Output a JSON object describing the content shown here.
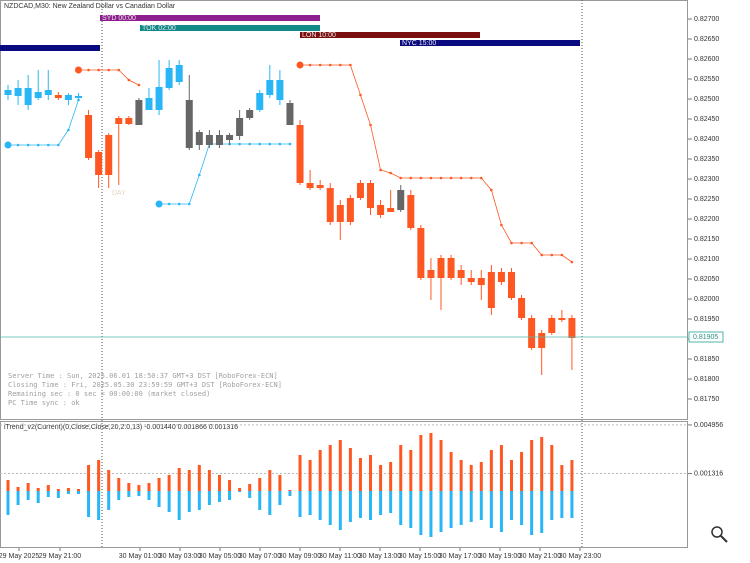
{
  "chart_data": {
    "type": "candlestick",
    "title": "NZDCAD,M30: New Zealand Dollar vs Canadian Dollar",
    "ylim": [
      0.816975,
      0.827475
    ],
    "yticks": [
      {
        "value": 0.827,
        "label": "0.82700"
      },
      {
        "value": 0.8265,
        "label": "0.82650"
      },
      {
        "value": 0.826,
        "label": "0.82600"
      },
      {
        "value": 0.8255,
        "label": "0.82550"
      },
      {
        "value": 0.825,
        "label": "0.82500"
      },
      {
        "value": 0.8245,
        "label": "0.82450"
      },
      {
        "value": 0.824,
        "label": "0.82400"
      },
      {
        "value": 0.8235,
        "label": "0.82350"
      },
      {
        "value": 0.823,
        "label": "0.82300"
      },
      {
        "value": 0.8225,
        "label": "0.82250"
      },
      {
        "value": 0.822,
        "label": "0.82200"
      },
      {
        "value": 0.8215,
        "label": "0.82150"
      },
      {
        "value": 0.821,
        "label": "0.82100"
      },
      {
        "value": 0.8205,
        "label": "0.82050"
      },
      {
        "value": 0.82,
        "label": "0.82000"
      },
      {
        "value": 0.8195,
        "label": "0.81950"
      },
      {
        "value": 0.819,
        "label": "0.81900"
      },
      {
        "value": 0.8185,
        "label": "0.81850"
      },
      {
        "value": 0.818,
        "label": "0.81800"
      },
      {
        "value": 0.8175,
        "label": "0.81750"
      }
    ],
    "bid": 0.81905,
    "open": [
      0.8251,
      0.825075,
      0.82485,
      0.825025,
      0.8251,
      0.8251,
      0.824975,
      0.825025,
      0.8246,
      0.823675,
      0.8241,
      0.824525,
      0.824525,
      0.82435,
      0.824725,
      0.824725,
      0.825275,
      0.825425,
      0.824975,
      0.824175,
      0.82385,
      0.8241,
      0.823975,
      0.824075,
      0.824525,
      0.824725,
      0.8251,
      0.824975,
      0.8249,
      0.82435,
      0.8229,
      0.82285,
      0.822775,
      0.82235,
      0.821925,
      0.822525,
      0.8229,
      0.82235,
      0.822275,
      0.822225,
      0.8226,
      0.821775,
      0.820725,
      0.820525,
      0.821025,
      0.820725,
      0.820525,
      0.820525,
      0.820675,
      0.820425,
      0.820675,
      0.820025,
      0.819525,
      0.818775,
      0.81915,
      0.819525,
      0.819525
    ],
    "high": [
      0.82535,
      0.825475,
      0.8256,
      0.825725,
      0.825725,
      0.825175,
      0.82515,
      0.82515,
      0.824725,
      0.823725,
      0.82415,
      0.824575,
      0.824575,
      0.825025,
      0.825275,
      0.825975,
      0.825975,
      0.825975,
      0.8256,
      0.824225,
      0.824225,
      0.824225,
      0.82415,
      0.824725,
      0.824775,
      0.825225,
      0.82585,
      0.825725,
      0.824975,
      0.824475,
      0.823225,
      0.822975,
      0.8229,
      0.822475,
      0.8226,
      0.822975,
      0.822975,
      0.822475,
      0.822725,
      0.82285,
      0.822725,
      0.82185,
      0.821025,
      0.8211,
      0.8211,
      0.82085,
      0.820725,
      0.820725,
      0.82085,
      0.820775,
      0.820775,
      0.8201,
      0.8196,
      0.819225,
      0.8196,
      0.819725,
      0.8196
    ],
    "low": [
      0.824975,
      0.82485,
      0.824725,
      0.824975,
      0.824975,
      0.824975,
      0.82485,
      0.824975,
      0.823475,
      0.822775,
      0.822775,
      0.82285,
      0.82435,
      0.82435,
      0.824725,
      0.8246,
      0.825225,
      0.82535,
      0.823725,
      0.823725,
      0.823775,
      0.823775,
      0.82385,
      0.823975,
      0.824475,
      0.824675,
      0.825025,
      0.82485,
      0.82435,
      0.82285,
      0.822725,
      0.822725,
      0.82185,
      0.821475,
      0.82185,
      0.822475,
      0.8221,
      0.822025,
      0.822175,
      0.822175,
      0.821725,
      0.820475,
      0.819975,
      0.819725,
      0.820475,
      0.82035,
      0.82035,
      0.819975,
      0.8196,
      0.82035,
      0.819975,
      0.819475,
      0.818725,
      0.8181,
      0.8191,
      0.819425,
      0.818225
    ],
    "close": [
      0.825225,
      0.825275,
      0.825275,
      0.825175,
      0.825225,
      0.825025,
      0.8251,
      0.825075,
      0.823525,
      0.8231,
      0.8231,
      0.824375,
      0.824375,
      0.824975,
      0.825025,
      0.8253,
      0.825775,
      0.82585,
      0.823775,
      0.82385,
      0.8241,
      0.82385,
      0.8241,
      0.824525,
      0.824725,
      0.82515,
      0.825475,
      0.825475,
      0.82435,
      0.8229,
      0.822775,
      0.822775,
      0.821925,
      0.821925,
      0.822525,
      0.8229,
      0.822275,
      0.8221,
      0.822175,
      0.822725,
      0.821775,
      0.820525,
      0.820525,
      0.821025,
      0.820525,
      0.820525,
      0.820425,
      0.82035,
      0.819775,
      0.820675,
      0.820025,
      0.819525,
      0.818775,
      0.81915,
      0.819525,
      0.819475,
      0.819025
    ],
    "colors": [
      "#29b6f6",
      "#29b6f6",
      "#29b6f6",
      "#29b6f6",
      "#29b6f6",
      "#ff5722",
      "#29b6f6",
      "#29b6f6",
      "#ff5722",
      "#ff5722",
      "#ff5722",
      "#ff5722",
      "#ff5722",
      "#666666",
      "#29b6f6",
      "#29b6f6",
      "#29b6f6",
      "#29b6f6",
      "#666666",
      "#666666",
      "#666666",
      "#666666",
      "#666666",
      "#666666",
      "#666666",
      "#29b6f6",
      "#29b6f6",
      "#29b6f6",
      "#666666",
      "#ff5722",
      "#ff5722",
      "#ff5722",
      "#ff5722",
      "#ff5722",
      "#ff5722",
      "#ff5722",
      "#ff5722",
      "#ff5722",
      "#ff5722",
      "#666666",
      "#ff5722",
      "#ff5722",
      "#ff5722",
      "#ff5722",
      "#ff5722",
      "#ff5722",
      "#ff5722",
      "#ff5722",
      "#ff5722",
      "#ff5722",
      "#ff5722",
      "#ff5722",
      "#ff5722",
      "#ff5722",
      "#ff5722",
      "#ff5722",
      "#ff5722"
    ],
    "overlays": [
      {
        "color": "#ff5722",
        "values": [
          null,
          null,
          null,
          null,
          null,
          null,
          null,
          0.825725,
          0.825725,
          0.825725,
          0.825725,
          0.825725,
          0.825475,
          0.82535,
          null,
          null,
          null,
          null,
          null,
          null,
          null,
          null,
          null,
          null,
          null,
          null,
          null,
          null,
          null,
          0.82585,
          0.82585,
          0.82585,
          0.82585,
          0.82585,
          0.82585,
          0.8251,
          0.82435,
          0.823225,
          0.82315,
          0.823025,
          0.823025,
          0.823025,
          0.823025,
          0.823025,
          0.823025,
          0.823025,
          0.823025,
          0.823025,
          0.822725,
          0.82185,
          0.8214,
          0.8214,
          0.8214,
          0.8211,
          0.8211,
          0.8211,
          0.820925
        ]
      },
      {
        "color": "#29b6f6",
        "values": [
          0.82385,
          0.82385,
          0.82385,
          0.82385,
          0.82385,
          0.82385,
          0.824225,
          0.824975,
          null,
          null,
          null,
          null,
          null,
          null,
          null,
          0.822375,
          0.822375,
          0.822375,
          0.822375,
          0.8231,
          0.823875,
          0.823875,
          0.823875,
          0.823875,
          0.823875,
          0.823875,
          0.823875,
          0.823875,
          0.823875,
          null,
          null,
          null,
          null,
          null,
          null,
          null,
          null,
          null,
          null,
          null,
          null,
          null,
          null,
          null,
          null,
          null,
          null,
          null,
          null,
          null,
          null,
          null,
          null,
          null,
          null,
          null,
          null
        ]
      }
    ],
    "sessions": [
      {
        "label": "SYD 00:00",
        "color": "#8e1d8e"
      },
      {
        "label": "TOK 02:00",
        "color": "#138a8a"
      },
      {
        "label": "LON 10:00",
        "color": "#7a0e0e"
      },
      {
        "label": "NYC 15:00",
        "color": "#0a0a80"
      }
    ],
    "day_label": "DAY",
    "info": [
      "Server Time   : Sun, 2025.06.01 18:50:37 GMT+3 DST [RoboForex-ECN]",
      "Closing Time  : Fri, 2025.05.30 23:59:59 GMT+3 DST [RoboForex-ECN]",
      "Remaining sec : 0 sec =  00:00:00   (market closed)",
      "PC Time sync  : ok"
    ],
    "x_labels": [
      "29 May 2025",
      "29 May 21:00",
      "30 May 01:00",
      "30 May 03:00",
      "30 May 05:00",
      "30 May 07:00",
      "30 May 09:00",
      "30 May 11:00",
      "30 May 13:00",
      "30 May 15:00",
      "30 May 17:00",
      "30 May 19:00",
      "30 May 21:00",
      "30 May 23:00"
    ],
    "indicator": {
      "type": "bar",
      "title": "iTrend_v2(Current)(0,Close,Close,20,2.0,13) -0.001440 0.001866 0.001316",
      "ylim": [
        -0.004275,
        0.005325
      ],
      "yticks": [
        0.004956,
        0.001316
      ],
      "pos_color": "#ff5722",
      "neg_color": "#29b6f6",
      "positive": [
        0.000825,
        0.0003,
        0.0006,
        0.000225,
        0.00045,
        0.00015,
        0.000225,
        0.00015,
        0.00195,
        0.002325,
        0.001575,
        0.000975,
        0.0006,
        0.00045,
        0.0006,
        0.000975,
        0.0012,
        0.001725,
        0.001575,
        0.00195,
        0.001575,
        0.0012,
        0.000825,
        0.000225,
        0.000525,
        0.000975,
        0.001575,
        0.0012,
        7.5e-05,
        0.0027,
        0.002325,
        0.003075,
        0.00345,
        0.003825,
        0.003225,
        0.002475,
        0.0027,
        0.00195,
        0.002175,
        0.00345,
        0.003075,
        0.0042,
        0.00435,
        0.003825,
        0.002925,
        0.002325,
        0.00195,
        0.002175,
        0.003075,
        0.00345,
        0.002325,
        0.002925,
        0.003825,
        0.00405,
        0.00345,
        0.00195,
        0.002325
      ],
      "negative": [
        -0.0018,
        -0.00105,
        -0.000675,
        -0.0009,
        -0.00045,
        -0.000525,
        -0.000225,
        -0.000225,
        -0.00195,
        -0.002175,
        -0.001425,
        -0.000675,
        -0.00045,
        -0.000375,
        -0.000675,
        -0.0012,
        -0.001575,
        -0.002175,
        -0.001575,
        -0.001425,
        -0.00105,
        -0.000825,
        -0.000675,
        -7.5e-05,
        -0.000525,
        -0.001425,
        -0.0018,
        -0.00105,
        -0.000375,
        -0.00195,
        -0.0018,
        -0.002175,
        -0.00255,
        -0.002925,
        -0.002325,
        -0.002025,
        -0.002175,
        -0.0018,
        -0.00165,
        -0.00255,
        -0.002775,
        -0.0033,
        -0.00345,
        -0.003075,
        -0.002775,
        -0.00255,
        -0.002325,
        -0.002175,
        -0.002775,
        -0.003075,
        -0.002175,
        -0.00255,
        -0.0033,
        -0.00315,
        -0.002175,
        -0.002025,
        -0.002025
      ]
    }
  }
}
